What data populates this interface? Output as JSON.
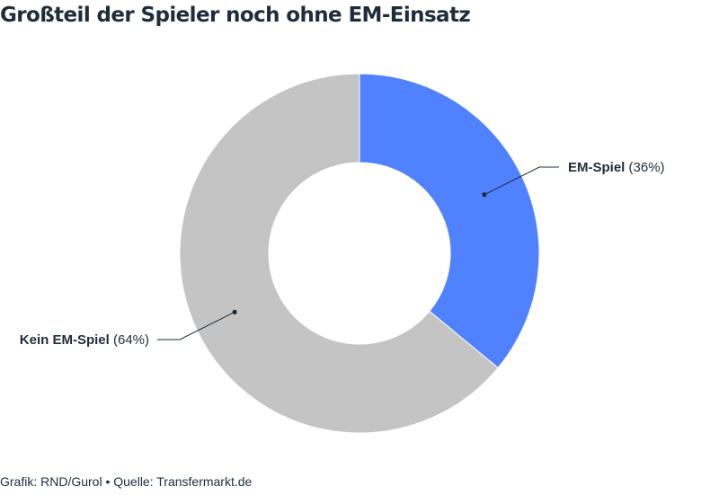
{
  "chart_data": {
    "type": "pie",
    "title": "Großteil der Spieler noch ohne EM-Einsatz",
    "donut": true,
    "start_angle": "12 o'clock, clockwise",
    "categories": [
      "EM-Spiel",
      "Kein EM-Spiel"
    ],
    "values": [
      36,
      64
    ],
    "data_labels": [
      "(36%)",
      "(64%)"
    ],
    "colors": [
      "#5082ff",
      "#c4c4c4"
    ]
  },
  "footer": {
    "text": "Grafik: RND/Gurol • Quelle: Transfermarkt.de"
  }
}
